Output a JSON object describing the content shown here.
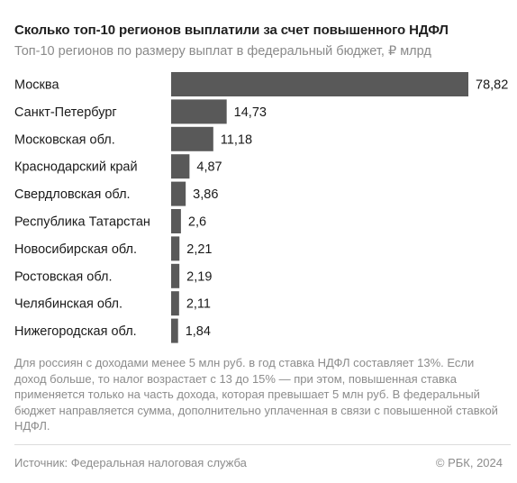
{
  "header": {
    "title": "Сколько топ-10 регионов выплатили за счет повышенного НДФЛ",
    "subtitle": "Топ-10 регионов по размеру выплат в федеральный бюджет, ₽ млрд"
  },
  "chart_data": {
    "type": "bar",
    "orientation": "horizontal",
    "title": "Сколько топ-10 регионов выплатили за счет повышенного НДФЛ",
    "subtitle": "Топ-10 регионов по размеру выплат в федеральный бюджет, ₽ млрд",
    "categories": [
      "Москва",
      "Санкт-Петербург",
      "Московская обл.",
      "Краснодарский край",
      "Свердловская обл.",
      "Республика Татарстан",
      "Новосибирская обл.",
      "Ростовская обл.",
      "Челябинская обл.",
      "Нижегородская обл."
    ],
    "values": [
      78.82,
      14.73,
      11.18,
      4.87,
      3.86,
      2.6,
      2.21,
      2.19,
      2.11,
      1.84
    ],
    "value_labels": [
      "78,82",
      "14,73",
      "11,18",
      "4,87",
      "3,86",
      "2,6",
      "2,21",
      "2,19",
      "2,11",
      "1,84"
    ],
    "xlim": [
      0,
      78.82
    ],
    "grid": false,
    "legend": "none",
    "colors": {
      "bar": "#595959",
      "label": "#1a1a1a"
    }
  },
  "footer": {
    "note": "Для россиян с доходами менее 5 млн руб. в год ставка НДФЛ составляет 13%. Если доход больше, то налог возрастает с 13 до 15%  — при этом, повышенная ставка применяется только на часть дохода, которая превышает 5 млн руб. В федеральный бюджет направляется сумма, дополнительно уплаченная в связи с повышенной ставкой НДФЛ.",
    "source": "Источник: Федеральная налоговая служба",
    "copyright": "© РБК, 2024"
  }
}
